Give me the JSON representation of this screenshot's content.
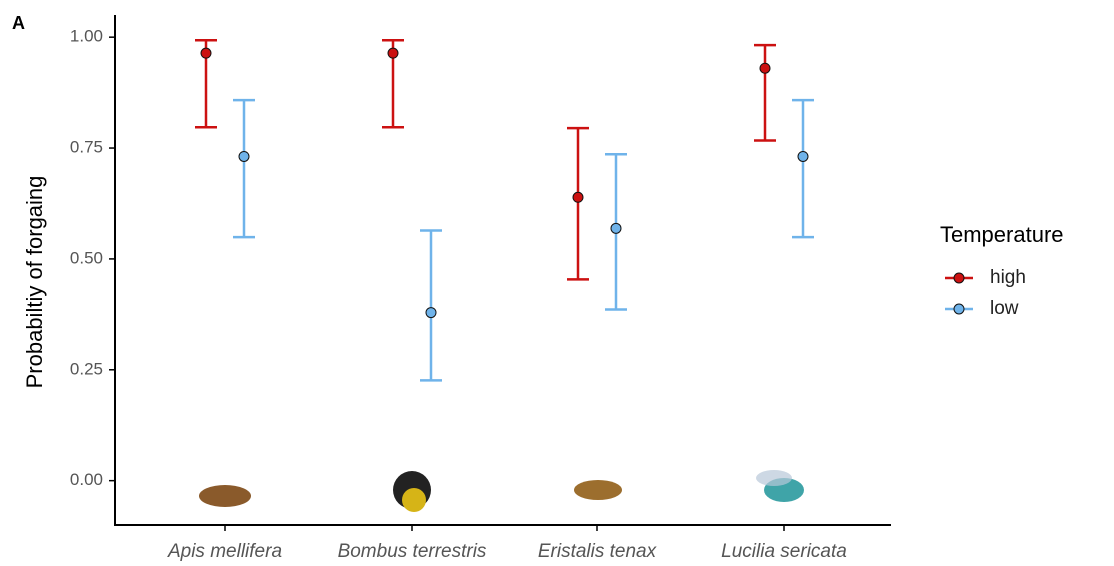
{
  "chart_data": {
    "type": "errorpoint",
    "panel_label": "A",
    "ylabel": "Probabiltiy of forgaing",
    "legend_title": "Temperature",
    "legend_position": "right",
    "categories": [
      "Apis mellifera",
      "Bombus terrestris",
      "Eristalis tenax",
      "Lucilia sericata"
    ],
    "ylim": [
      -0.1,
      1.05
    ],
    "yticks": [
      {
        "value": 0,
        "label": "0.00"
      },
      {
        "value": 0.25,
        "label": "0.25"
      },
      {
        "value": 0.5,
        "label": "0.50"
      },
      {
        "value": 0.75,
        "label": "0.75"
      },
      {
        "value": 1,
        "label": "1.00"
      }
    ],
    "series": [
      {
        "name": "high",
        "color": "#cc1111",
        "values": [
          0.964,
          0.964,
          0.639,
          0.93
        ],
        "lower": [
          0.797,
          0.797,
          0.454,
          0.767
        ],
        "upper": [
          0.993,
          0.993,
          0.795,
          0.982
        ]
      },
      {
        "name": "low",
        "color": "#6fb3ea",
        "values": [
          0.731,
          0.379,
          0.569,
          0.731
        ],
        "lower": [
          0.549,
          0.226,
          0.386,
          0.549
        ],
        "upper": [
          0.858,
          0.564,
          0.736,
          0.858
        ]
      }
    ]
  }
}
